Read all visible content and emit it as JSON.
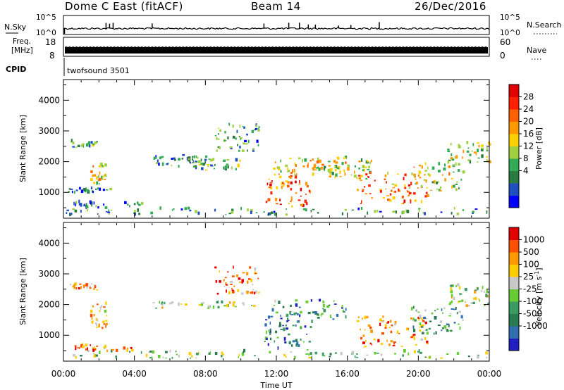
{
  "header": {
    "station": "Dome C East (fitACF)",
    "beam": "Beam 14",
    "date": "26/Dec/2016"
  },
  "nsky_panel": {
    "label": "N.Sky",
    "right_label": "N.Search",
    "left_ticks": [
      "10^5",
      "10^0"
    ],
    "right_ticks": [
      "10^5",
      "10^0"
    ],
    "baseline_level": 0.3,
    "spike_times_h": [
      2.4,
      2.6,
      2.8,
      5.0,
      11.3,
      12.7,
      13.3,
      13.8,
      14.2,
      15.5,
      16.2,
      17.8
    ]
  },
  "freq_panel": {
    "label_line1": "Freq.",
    "label_line2": "[MHz]",
    "right_label": "Nave",
    "left_ticks": [
      "18",
      "8"
    ],
    "right_ticks": [
      "60",
      "0"
    ]
  },
  "cpid": {
    "label": "CPID",
    "program": "twofsound 3501"
  },
  "x_axis": {
    "label": "Time UT",
    "ticks": [
      "00:00",
      "04:00",
      "08:00",
      "12:00",
      "16:00",
      "20:00",
      "00:00"
    ],
    "range_hours": [
      0,
      24
    ]
  },
  "chart_data": [
    {
      "type": "heatmap",
      "panel": "power",
      "ylabel": "Slant Range [km]",
      "y_ticks": [
        1000,
        2000,
        3000,
        4000
      ],
      "ylim": [
        180,
        4650
      ],
      "colorbar": {
        "label": "Power [dB]",
        "ticks": [
          "28",
          "24",
          "20",
          "16",
          "12",
          "8",
          "4"
        ],
        "colors": [
          "#0000ff",
          "#2050c0",
          "#2a7a40",
          "#33aa55",
          "#a0d040",
          "#ffd000",
          "#ff9900",
          "#ff6000",
          "#ff2000",
          "#e00000"
        ]
      },
      "regions": [
        {
          "t0": 0.0,
          "t1": 24.0,
          "r0": 200,
          "r1": 450,
          "level": 0.25
        },
        {
          "t0": 0.2,
          "t1": 2.6,
          "r0": 950,
          "r1": 1100,
          "level": 0.2
        },
        {
          "t0": 0.3,
          "t1": 2.0,
          "r0": 2450,
          "r1": 2650,
          "level": 0.3
        },
        {
          "t0": 1.5,
          "t1": 2.4,
          "r0": 1200,
          "r1": 1900,
          "level": 0.55
        },
        {
          "t0": 0.5,
          "t1": 4.5,
          "r0": 450,
          "r1": 650,
          "level": 0.2
        },
        {
          "t0": 5.0,
          "t1": 8.0,
          "r0": 1800,
          "r1": 2200,
          "level": 0.25
        },
        {
          "t0": 7.0,
          "t1": 10.0,
          "r0": 1700,
          "r1": 2100,
          "level": 0.35
        },
        {
          "t0": 8.5,
          "t1": 11.0,
          "r0": 2300,
          "r1": 3200,
          "level": 0.3
        },
        {
          "t0": 11.3,
          "t1": 14.0,
          "r0": 500,
          "r1": 1500,
          "level": 0.75
        },
        {
          "t0": 11.5,
          "t1": 16.0,
          "r0": 1500,
          "r1": 2100,
          "level": 0.55
        },
        {
          "t0": 14.0,
          "t1": 17.5,
          "r0": 1400,
          "r1": 2000,
          "level": 0.45
        },
        {
          "t0": 16.5,
          "t1": 20.5,
          "r0": 600,
          "r1": 1600,
          "level": 0.7
        },
        {
          "t0": 19.5,
          "t1": 22.5,
          "r0": 1000,
          "r1": 1900,
          "level": 0.5
        },
        {
          "t0": 21.5,
          "t1": 24.0,
          "r0": 1900,
          "r1": 2600,
          "level": 0.45
        }
      ]
    },
    {
      "type": "heatmap",
      "panel": "velocity",
      "ylabel": "Slant Range [km]",
      "y_ticks": [
        1000,
        2000,
        3000,
        4000
      ],
      "ylim": [
        180,
        4650
      ],
      "colorbar": {
        "label": "Velocity [m s^-1]",
        "ticks": [
          "1000",
          "500",
          "100",
          "25",
          "-25",
          "-100",
          "-500",
          "-1000"
        ],
        "colors": [
          "#2020c0",
          "#3070b0",
          "#2a7a50",
          "#3a9a60",
          "#66cc33",
          "#c8c8c8",
          "#ffcc00",
          "#ff9900",
          "#ff5000",
          "#e00000"
        ]
      },
      "regions": [
        {
          "t0": 0.0,
          "t1": 24.0,
          "r0": 200,
          "r1": 450,
          "level": 0.45
        },
        {
          "t0": 0.3,
          "t1": 2.0,
          "r0": 2450,
          "r1": 2650,
          "level": 0.7
        },
        {
          "t0": 1.5,
          "t1": 2.4,
          "r0": 1200,
          "r1": 2000,
          "level": 0.72
        },
        {
          "t0": 0.5,
          "t1": 4.5,
          "r0": 450,
          "r1": 650,
          "level": 0.75
        },
        {
          "t0": 5.0,
          "t1": 11.0,
          "r0": 1850,
          "r1": 2050,
          "level": 0.5
        },
        {
          "t0": 8.5,
          "t1": 11.0,
          "r0": 2300,
          "r1": 3200,
          "level": 0.72
        },
        {
          "t0": 11.3,
          "t1": 14.0,
          "r0": 500,
          "r1": 1500,
          "level": 0.25
        },
        {
          "t0": 11.5,
          "t1": 16.0,
          "r0": 1500,
          "r1": 2100,
          "level": 0.3
        },
        {
          "t0": 16.5,
          "t1": 20.5,
          "r0": 600,
          "r1": 1600,
          "level": 0.78
        },
        {
          "t0": 19.5,
          "t1": 22.5,
          "r0": 1000,
          "r1": 1900,
          "level": 0.35
        },
        {
          "t0": 21.5,
          "t1": 24.0,
          "r0": 1900,
          "r1": 2600,
          "level": 0.55
        }
      ]
    }
  ]
}
